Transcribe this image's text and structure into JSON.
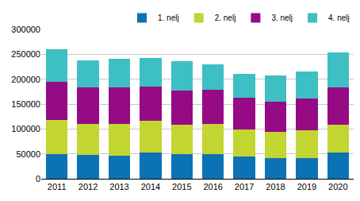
{
  "chart_data": {
    "type": "bar",
    "stacked": true,
    "grid": true,
    "legend": "top right",
    "categories": [
      "2011",
      "2012",
      "2013",
      "2014",
      "2015",
      "2016",
      "2017",
      "2018",
      "2019",
      "2020"
    ],
    "series": [
      {
        "name": "1. nelj",
        "color": "#0b72b5",
        "values": [
          50000,
          48000,
          47000,
          53000,
          49000,
          49000,
          45000,
          41000,
          42000,
          52000
        ]
      },
      {
        "name": "2. nelj",
        "color": "#c2d530",
        "values": [
          68000,
          62000,
          63000,
          63000,
          60000,
          61000,
          54000,
          53000,
          55000,
          56000
        ]
      },
      {
        "name": "3. nelj",
        "color": "#960a84",
        "values": [
          77000,
          73000,
          74000,
          69000,
          68000,
          68000,
          63000,
          60000,
          64000,
          75000
        ]
      },
      {
        "name": "4. nelj",
        "color": "#3ebfc3",
        "values": [
          65000,
          55000,
          57000,
          57000,
          59000,
          52000,
          49000,
          53000,
          55000,
          70000
        ]
      }
    ],
    "ylim": [
      0,
      300000
    ],
    "yticks": [
      0,
      50000,
      100000,
      150000,
      200000,
      250000,
      300000
    ]
  }
}
